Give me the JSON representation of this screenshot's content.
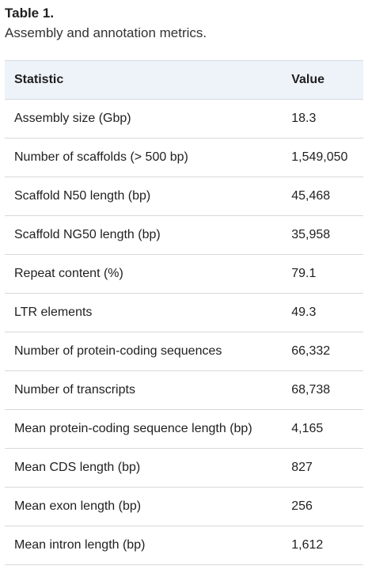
{
  "caption": {
    "title": "Table 1.",
    "text": "Assembly and annotation metrics."
  },
  "table": {
    "headers": [
      "Statistic",
      "Value"
    ],
    "rows": [
      {
        "statistic": "Assembly size (Gbp)",
        "value": "18.3"
      },
      {
        "statistic": "Number of scaffolds (> 500 bp)",
        "value": "1,549,050"
      },
      {
        "statistic": "Scaffold N50 length (bp)",
        "value": "45,468"
      },
      {
        "statistic": "Scaffold NG50 length (bp)",
        "value": "35,958"
      },
      {
        "statistic": "Repeat content (%)",
        "value": "79.1"
      },
      {
        "statistic": "LTR elements",
        "value": "49.3"
      },
      {
        "statistic": "Number of protein-coding sequences",
        "value": "66,332"
      },
      {
        "statistic": "Number of transcripts",
        "value": "68,738"
      },
      {
        "statistic": "Mean protein-coding sequence length (bp)",
        "value": "4,165"
      },
      {
        "statistic": "Mean CDS length (bp)",
        "value": "827"
      },
      {
        "statistic": "Mean exon length (bp)",
        "value": "256"
      },
      {
        "statistic": "Mean intron length (bp)",
        "value": "1,612"
      }
    ]
  }
}
